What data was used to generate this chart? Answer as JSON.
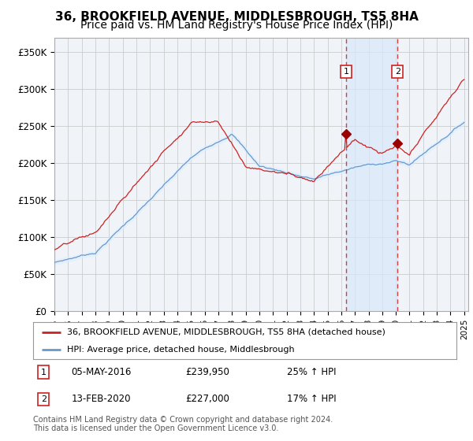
{
  "title": "36, BROOKFIELD AVENUE, MIDDLESBROUGH, TS5 8HA",
  "subtitle": "Price paid vs. HM Land Registry's House Price Index (HPI)",
  "ylim": [
    0,
    370000
  ],
  "yticks": [
    0,
    50000,
    100000,
    150000,
    200000,
    250000,
    300000,
    350000
  ],
  "ytick_labels": [
    "£0",
    "£50K",
    "£100K",
    "£150K",
    "£200K",
    "£250K",
    "£300K",
    "£350K"
  ],
  "red_line_color": "#cc2222",
  "blue_line_color": "#6699cc",
  "blue_fill_color": "#ddeeff",
  "grid_color": "#cccccc",
  "bg_color": "#ffffff",
  "plot_bg_color": "#f0f4f8",
  "marker1_date": 2016.37,
  "marker2_date": 2020.12,
  "marker1_price": 239950,
  "marker2_price": 227000,
  "marker1_label": "05-MAY-2016",
  "marker2_label": "13-FEB-2020",
  "marker1_pct": "25% ↑ HPI",
  "marker2_pct": "17% ↑ HPI",
  "legend_label1": "36, BROOKFIELD AVENUE, MIDDLESBROUGH, TS5 8HA (detached house)",
  "legend_label2": "HPI: Average price, detached house, Middlesbrough",
  "footer": "Contains HM Land Registry data © Crown copyright and database right 2024.\nThis data is licensed under the Open Government Licence v3.0.",
  "title_fontsize": 11,
  "subtitle_fontsize": 10
}
